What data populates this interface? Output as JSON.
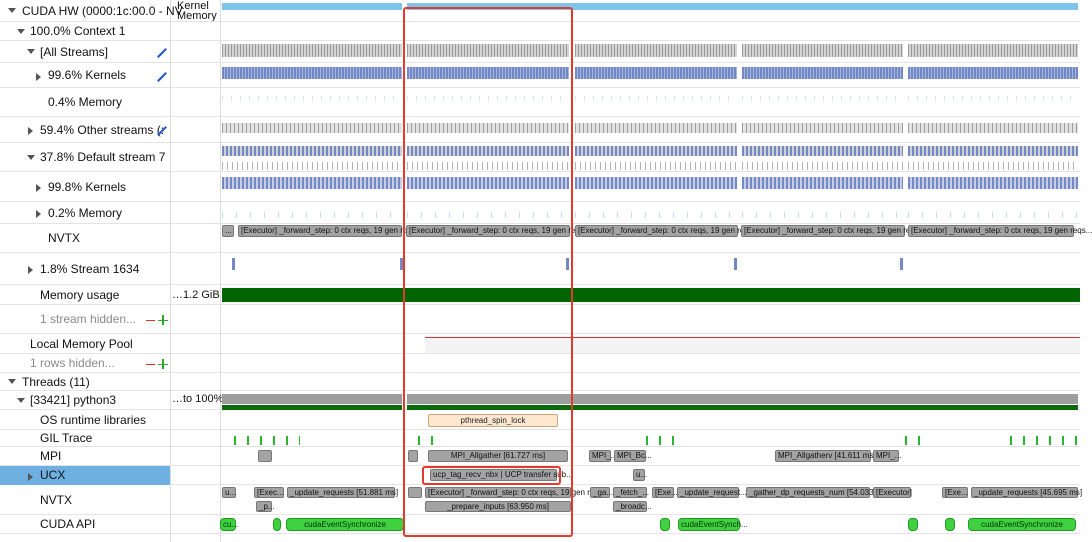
{
  "tree": {
    "rows": [
      {
        "label": "CUDA HW (0000:1c:00.0 - NV"
      },
      {
        "label": "100.0% Context 1"
      },
      {
        "label": "[All Streams]"
      },
      {
        "label": "99.6% Kernels"
      },
      {
        "label": "0.4% Memory"
      },
      {
        "label": "59.4% Other streams (:"
      },
      {
        "label": "37.8% Default stream 7"
      },
      {
        "label": "99.8% Kernels"
      },
      {
        "label": "0.2% Memory"
      },
      {
        "label": "NVTX"
      },
      {
        "label": "1.8% Stream 1634"
      },
      {
        "label": "Memory usage"
      },
      {
        "label": "1 stream hidden..."
      },
      {
        "label": "Local Memory Pool"
      },
      {
        "label": "1 rows hidden..."
      },
      {
        "label": "Threads (11)"
      },
      {
        "label": "[33421] python3"
      },
      {
        "label": "OS runtime libraries"
      },
      {
        "label": "GIL Trace"
      },
      {
        "label": "MPI"
      },
      {
        "label": "UCX"
      },
      {
        "label": "NVTX"
      },
      {
        "label": "CUDA API"
      }
    ]
  },
  "side_labels": {
    "kernel": "Kernel",
    "memory": "Memory",
    "memory_usage": "…1.2 GiB",
    "cpu": "…to 100%"
  },
  "timeline": {
    "blocks": [
      {
        "text": "..."
      },
      {
        "text": "[Executor] _forward_step: 0 ctx reqs, 19 gen reqs..."
      },
      {
        "text": "[Executor] _forward_step: 0 ctx reqs, 19 gen reqs..."
      },
      {
        "text": "[Executor] _forward_step: 0 ctx reqs, 19 gen reqs..."
      },
      {
        "text": "[Executor] _forward_step: 0 ctx reqs, 19 gen reqs..."
      },
      {
        "text": "[Executor] _forward_step: 0 ctx reqs, 19 gen reqs..."
      },
      {
        "text": "pthread_spin_lock"
      },
      {
        "text": "MPI_Allgather [61.727 ms]"
      },
      {
        "text": "MPI_..."
      },
      {
        "text": "MPI_Bc..."
      },
      {
        "text": "MPI_Allgatherv [41.611 ms]"
      },
      {
        "text": "MPI_..."
      },
      {
        "text": "ucp_tag_recv_nbx | UCP transfer sub..."
      },
      {
        "text": "u..."
      },
      {
        "text": "u..."
      },
      {
        "text": "[Exec..."
      },
      {
        "text": "_update_requests [51.881 ms]"
      },
      {
        "text": "[Executor] _forward_step: 0 ctx reqs, 19 gen re..."
      },
      {
        "text": "_ga..."
      },
      {
        "text": "_fetch_..."
      },
      {
        "text": "[Exe..."
      },
      {
        "text": "_update_request..."
      },
      {
        "text": "_gather_dp_requests_num [54.033 ..."
      },
      {
        "text": "[Executor]"
      },
      {
        "text": "[Exe..."
      },
      {
        "text": "_update_requests [45.695 ms]"
      },
      {
        "text": "_p..."
      },
      {
        "text": "_prepare_inputs [63.950 ms]"
      },
      {
        "text": "_broadc..."
      },
      {
        "text": "cu..."
      },
      {
        "text": "cudaEventSynchronize"
      },
      {
        "text": "cudaEventSynch..."
      },
      {
        "text": "cudaEventSynchronize"
      }
    ]
  }
}
